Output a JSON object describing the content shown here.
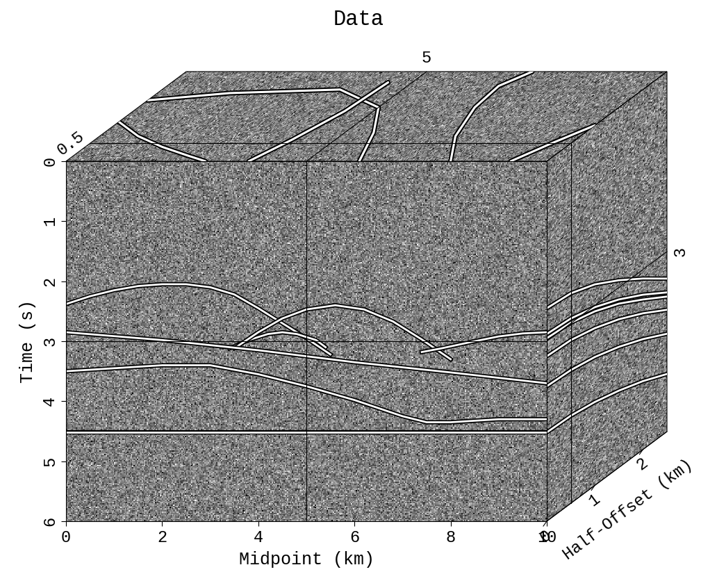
{
  "chart_data": {
    "type": "cube",
    "title": "Data",
    "xlabel": "Midpoint (km)",
    "ylabel": "Time (s)",
    "zlabel": "Half-Offset (km)",
    "xlim": [
      0,
      10
    ],
    "xticks": [
      0,
      2,
      4,
      6,
      8,
      10
    ],
    "ylim": [
      6,
      0
    ],
    "yticks": [
      0,
      1,
      2,
      3,
      4,
      5,
      6
    ],
    "zlim": [
      0,
      2.5
    ],
    "zticks": [
      0,
      1,
      2
    ],
    "slices": {
      "midpoint": 5,
      "half_offset": 0.5,
      "time": 3
    },
    "color": "#ffffff",
    "grid": false,
    "front_events": [
      {
        "x": [
          0,
          0.5,
          1,
          1.5,
          2,
          2.5,
          3,
          3.5,
          4,
          4.5,
          5,
          5.5
        ],
        "values": [
          2.38,
          2.25,
          2.15,
          2.08,
          2.05,
          2.05,
          2.1,
          2.22,
          2.45,
          2.7,
          2.95,
          3.22
        ]
      },
      {
        "x": [
          3.4,
          3.8,
          4.2,
          4.5,
          4.8,
          5.2,
          5.4
        ],
        "values": [
          3.12,
          2.98,
          2.88,
          2.85,
          2.88,
          2.98,
          3.1
        ]
      },
      {
        "x": [
          3.5,
          4,
          4.5,
          5,
          5.6,
          6.2,
          6.8,
          7.4,
          8
        ],
        "values": [
          3.12,
          2.85,
          2.62,
          2.47,
          2.4,
          2.47,
          2.67,
          2.97,
          3.3
        ]
      },
      {
        "x": [
          7.4,
          7.8,
          8.5,
          9,
          9.5,
          10
        ],
        "values": [
          3.18,
          3.12,
          3.0,
          2.92,
          2.87,
          2.85
        ]
      },
      {
        "x": [
          0,
          2,
          4,
          5,
          6,
          8,
          10
        ],
        "values": [
          2.85,
          2.98,
          3.15,
          3.25,
          3.35,
          3.52,
          3.7
        ]
      },
      {
        "x": [
          0,
          2,
          3,
          4,
          5,
          6,
          7,
          7.5,
          8,
          9,
          10
        ],
        "values": [
          3.5,
          3.4,
          3.4,
          3.55,
          3.75,
          3.98,
          4.25,
          4.35,
          4.35,
          4.3,
          4.3
        ]
      },
      {
        "x": [
          0,
          10
        ],
        "values": [
          4.52,
          4.52
        ]
      }
    ],
    "side_events": [
      {
        "x": [
          0,
          0.5,
          1,
          1.5,
          2,
          2.5
        ],
        "values": [
          2.45,
          2.5,
          2.65,
          2.88,
          3.15,
          3.45
        ]
      },
      {
        "x": [
          0,
          0.5,
          1,
          1.5,
          2,
          2.5
        ],
        "values": [
          2.88,
          2.92,
          3.03,
          3.2,
          3.42,
          3.68
        ]
      },
      {
        "x": [
          0,
          0.5,
          1,
          1.5,
          2,
          2.5
        ],
        "values": [
          2.95,
          2.99,
          3.1,
          3.27,
          3.5,
          3.75
        ]
      },
      {
        "x": [
          0,
          0.5,
          1,
          1.5,
          2,
          2.5
        ],
        "values": [
          3.25,
          3.28,
          3.38,
          3.53,
          3.73,
          3.97
        ]
      },
      {
        "x": [
          0,
          0.5,
          1,
          1.5,
          2,
          2.5
        ],
        "values": [
          3.75,
          3.78,
          3.86,
          3.99,
          4.16,
          4.37
        ]
      },
      {
        "x": [
          0,
          0.5,
          1,
          1.5,
          2,
          2.5
        ],
        "values": [
          4.52,
          4.54,
          4.61,
          4.72,
          4.86,
          5.04
        ]
      }
    ],
    "top_events": [
      {
        "x": [
          0.0,
          0.8,
          1.6,
          2.4,
          2.9
        ],
        "values": [
          1.1,
          0.7,
          0.4,
          0.15,
          0.0
        ]
      },
      {
        "x": [
          0.0,
          1.5,
          3.7,
          5.0,
          5.6,
          6.1
        ],
        "values": [
          1.7,
          1.9,
          2.0,
          1.5,
          0.8,
          0.0
        ]
      },
      {
        "x": [
          3.8,
          4.1,
          4.4,
          4.5
        ],
        "values": [
          0.0,
          0.6,
          1.4,
          2.2
        ]
      },
      {
        "x": [
          8.0,
          7.4,
          7.0,
          6.9,
          7.2
        ],
        "values": [
          0.0,
          0.7,
          1.5,
          2.1,
          2.5
        ]
      },
      {
        "x": [
          9.25,
          9.6,
          10.0
        ],
        "values": [
          0.0,
          0.5,
          1.0
        ]
      }
    ]
  }
}
